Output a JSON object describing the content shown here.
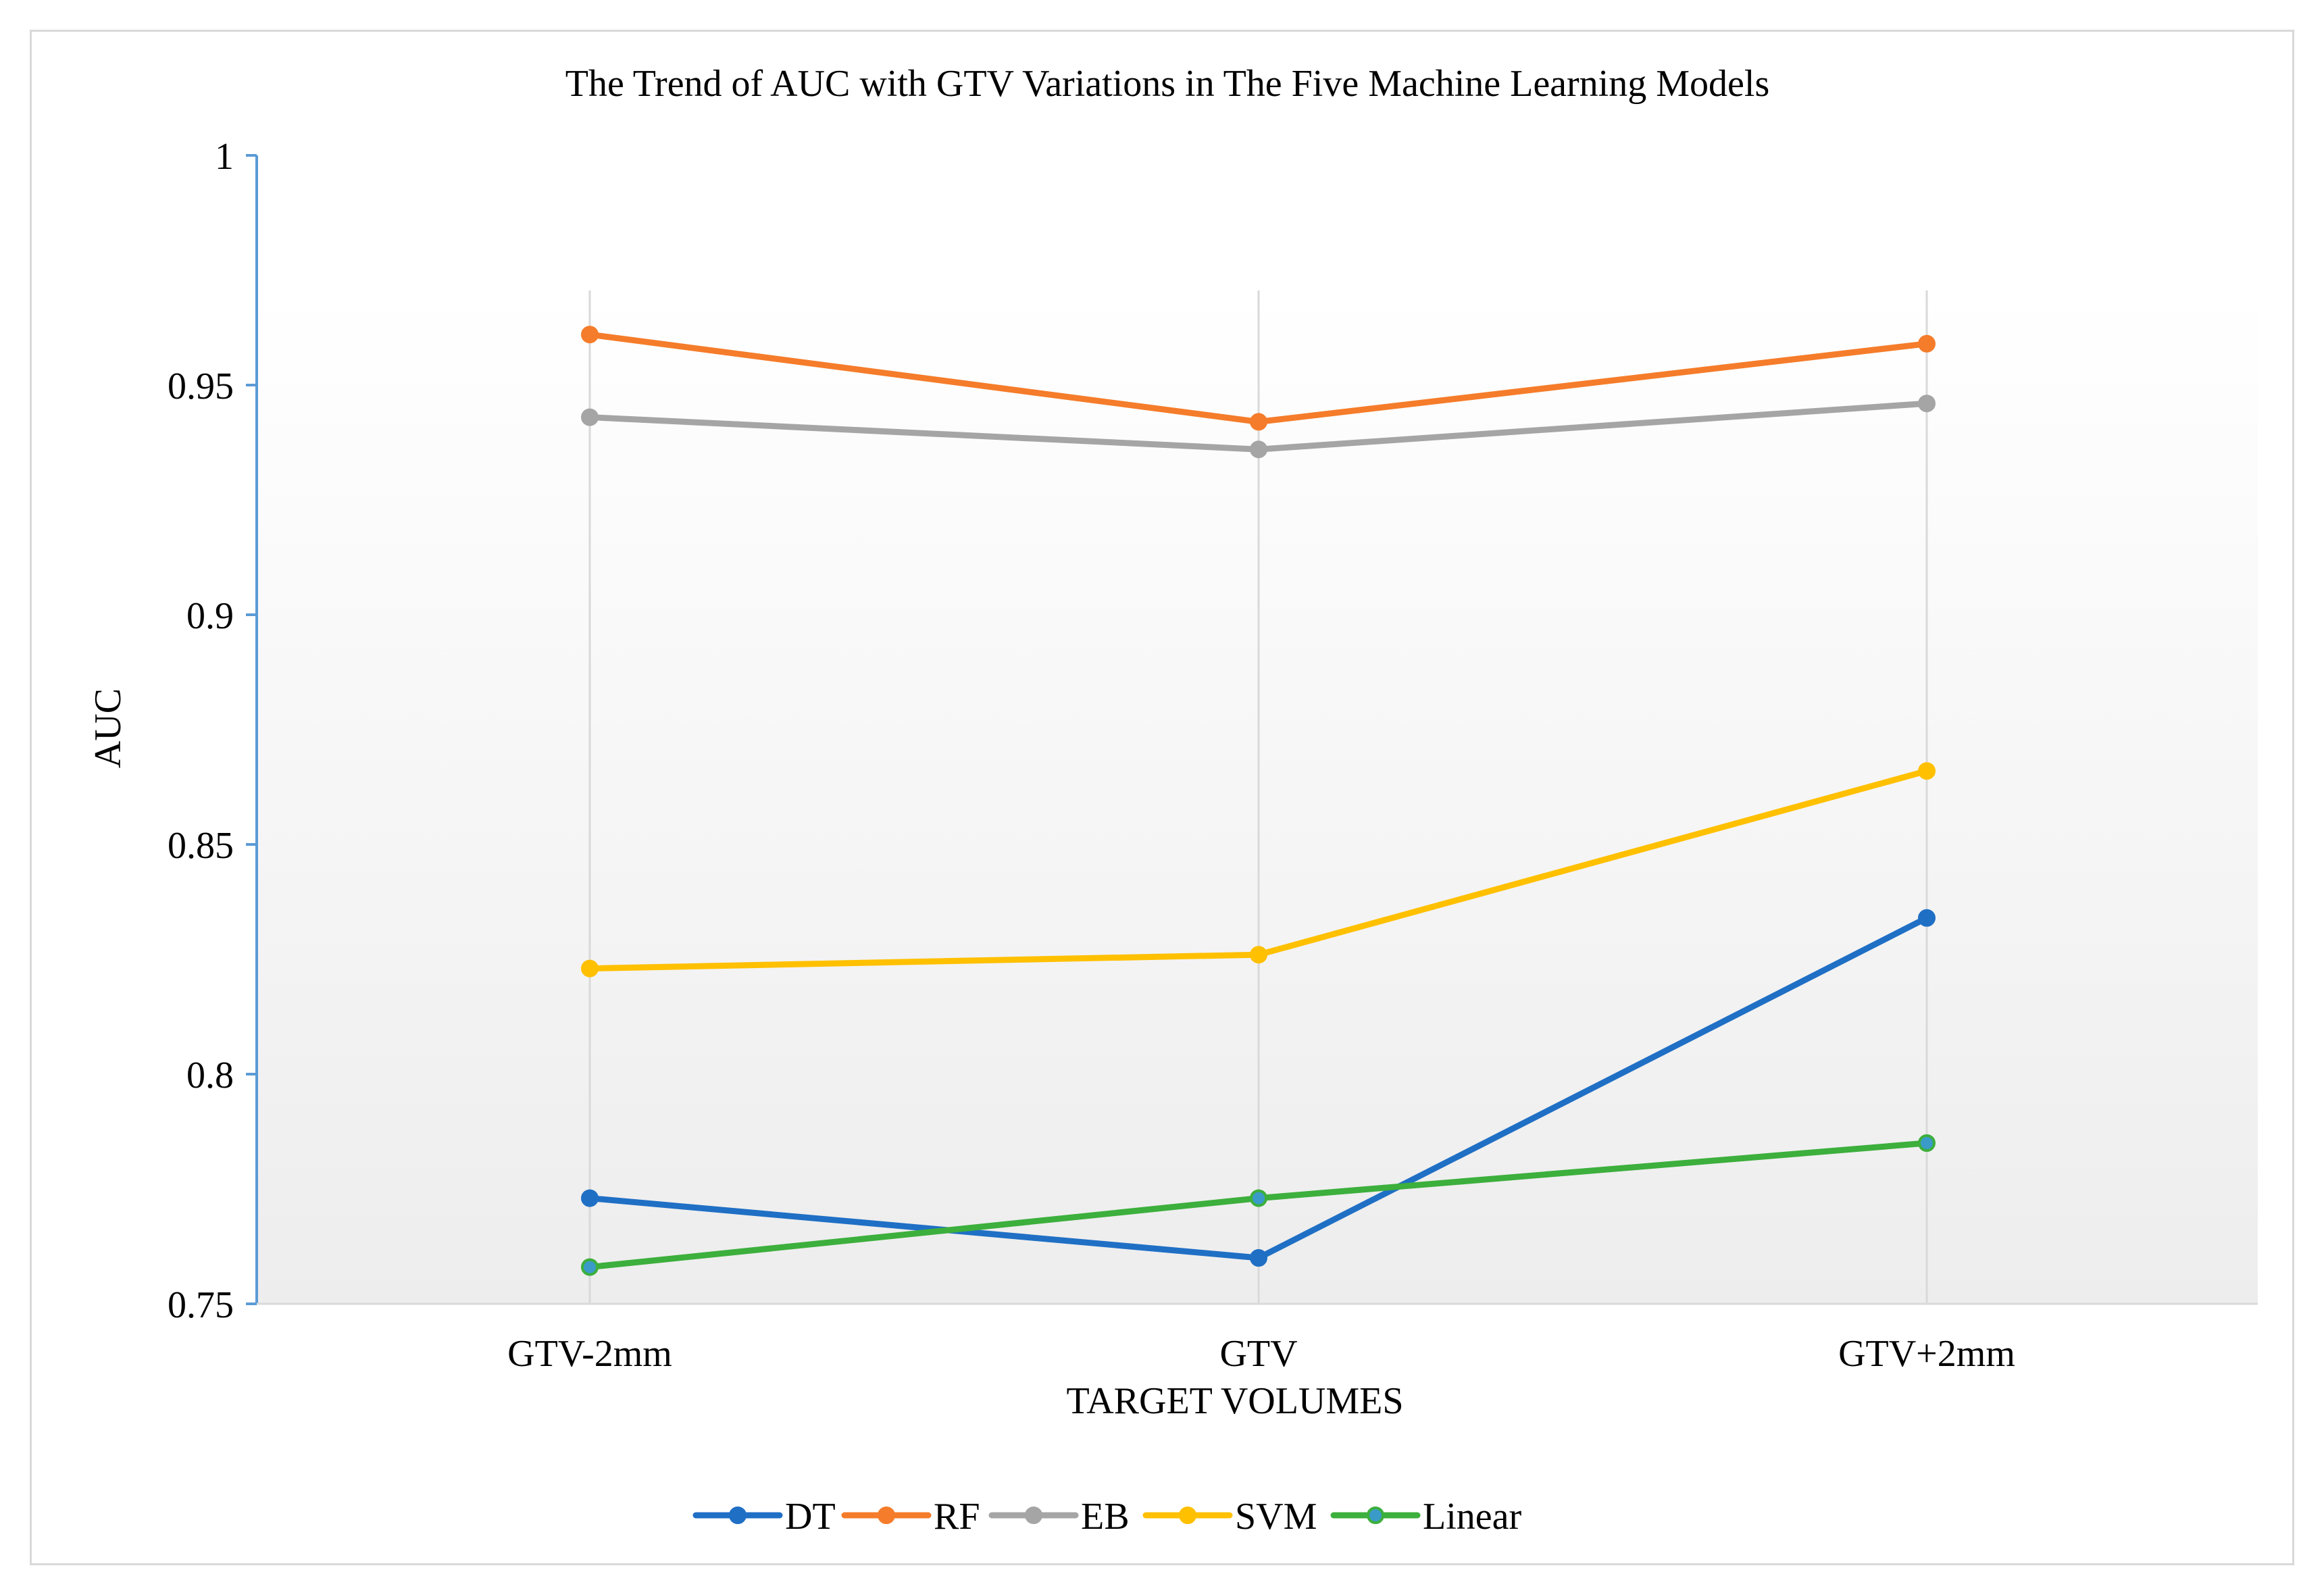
{
  "chart_data": {
    "type": "line",
    "title": "The Trend of AUC with GTV Variations in The Five Machine Learning Models",
    "xlabel": "TARGET VOLUMES",
    "ylabel": "AUC",
    "categories": [
      "GTV-2mm",
      "GTV",
      "GTV+2mm"
    ],
    "ylim": [
      0.75,
      1
    ],
    "yticks": [
      "0.75",
      "0.8",
      "0.85",
      "0.9",
      "0.95",
      "1"
    ],
    "grid": "vertical",
    "legend": "bottom",
    "series": [
      {
        "name": "DT",
        "color": "#1f6fc5",
        "values": [
          0.773,
          0.76,
          0.834
        ]
      },
      {
        "name": "RF",
        "color": "#f57c2a",
        "values": [
          0.961,
          0.942,
          0.959
        ]
      },
      {
        "name": "EB",
        "color": "#a5a5a5",
        "values": [
          0.943,
          0.936,
          0.946
        ]
      },
      {
        "name": "SVM",
        "color": "#ffc000",
        "values": [
          0.823,
          0.826,
          0.866
        ]
      },
      {
        "name": "Linear",
        "color": "#3caf3c",
        "values": [
          0.758,
          0.773,
          0.785
        ]
      }
    ]
  }
}
